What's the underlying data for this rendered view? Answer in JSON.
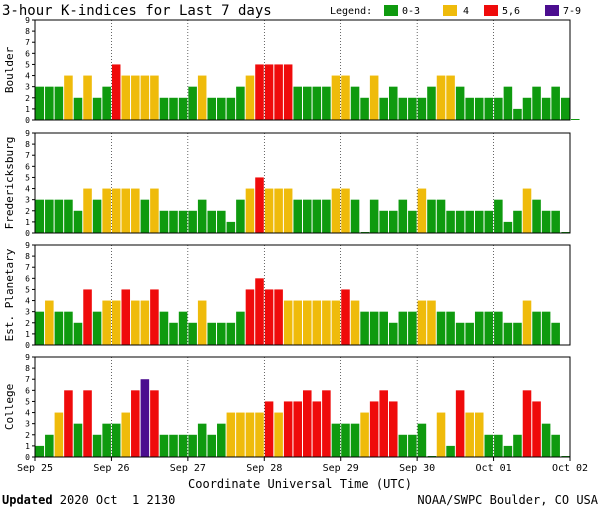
{
  "chart_data": {
    "type": "bar",
    "title": "3-hour K-indices for Last 7 days",
    "legend": {
      "label": "Legend:",
      "entries": [
        {
          "label": "0-3",
          "color": "#0f9a0f"
        },
        {
          "label": "4",
          "color": "#efbb0b"
        },
        {
          "label": "5,6",
          "color": "#ef0b0b"
        },
        {
          "label": "7-9",
          "color": "#4b0d8f"
        }
      ]
    },
    "ylim": [
      0,
      9
    ],
    "yticks": [
      0,
      1,
      2,
      3,
      4,
      5,
      6,
      7,
      8,
      9
    ],
    "xlabel": "Coordinate Universal Time (UTC)",
    "date_labels": [
      "Sep 25",
      "Sep 26",
      "Sep 27",
      "Sep 28",
      "Sep 29",
      "Sep 30",
      "Oct 01",
      "Oct 02"
    ],
    "panels": [
      {
        "name": "Boulder",
        "values": [
          3,
          3,
          3,
          4,
          2,
          4,
          2,
          3,
          5,
          4,
          4,
          4,
          4,
          2,
          2,
          2,
          3,
          4,
          2,
          2,
          2,
          3,
          4,
          5,
          5,
          5,
          5,
          3,
          3,
          3,
          3,
          4,
          4,
          3,
          2,
          4,
          2,
          3,
          2,
          2,
          2,
          3,
          4,
          4,
          3,
          2,
          2,
          2,
          2,
          3,
          1,
          2,
          3,
          2,
          3,
          2,
          0
        ]
      },
      {
        "name": "Fredericksburg",
        "values": [
          3,
          3,
          3,
          3,
          2,
          4,
          3,
          4,
          4,
          4,
          4,
          3,
          4,
          2,
          2,
          2,
          2,
          3,
          2,
          2,
          1,
          3,
          4,
          5,
          4,
          4,
          4,
          3,
          3,
          3,
          3,
          4,
          4,
          3,
          0,
          3,
          2,
          2,
          3,
          2,
          4,
          3,
          3,
          2,
          2,
          2,
          2,
          2,
          3,
          1,
          2,
          4,
          3,
          2,
          2,
          0
        ]
      },
      {
        "name": "Est. Planetary",
        "values": [
          3,
          4,
          3,
          3,
          2,
          5,
          3,
          4,
          4,
          5,
          4,
          4,
          5,
          3,
          2,
          3,
          2,
          4,
          2,
          2,
          2,
          3,
          5,
          6,
          5,
          5,
          4,
          4,
          4,
          4,
          4,
          4,
          5,
          4,
          3,
          3,
          3,
          2,
          3,
          3,
          4,
          4,
          3,
          3,
          2,
          2,
          3,
          3,
          3,
          2,
          2,
          4,
          3,
          3,
          2
        ]
      },
      {
        "name": "College",
        "values": [
          1,
          2,
          4,
          6,
          3,
          6,
          2,
          3,
          3,
          4,
          6,
          7,
          6,
          2,
          2,
          2,
          2,
          3,
          2,
          3,
          4,
          4,
          4,
          4,
          5,
          4,
          5,
          5,
          6,
          5,
          6,
          3,
          3,
          3,
          4,
          5,
          6,
          5,
          2,
          2,
          3,
          0,
          4,
          1,
          6,
          4,
          4,
          2,
          2,
          1,
          2,
          6,
          5,
          3,
          2,
          0
        ]
      }
    ]
  },
  "footer": {
    "updated_label": "Updated",
    "updated_value": " 2020 Oct  1 2130",
    "source": "NOAA/SWPC Boulder, CO USA"
  }
}
